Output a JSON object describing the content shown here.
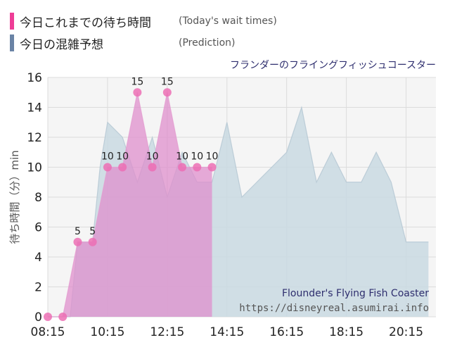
{
  "legend": {
    "actual_label": "今日これまでの待ち時間",
    "actual_sub": "(Today's wait times)",
    "prediction_label": "今日の混雑予想",
    "prediction_sub": "(Prediction)"
  },
  "colors": {
    "actual": "#ee3d96",
    "prediction": "#6a83a5",
    "actual_fill": "#df8fcc",
    "prediction_fill": "#c9d9e2"
  },
  "attraction_jp": "フランダーのフライングフィッシュコースター",
  "attraction_en": "Flounder's Flying Fish Coaster",
  "source_url": "https://disneyreal.asumirai.info",
  "chart_data": {
    "type": "area",
    "ylabel": "待ち時間（分）min",
    "xlabel": "",
    "ylim": [
      0,
      16
    ],
    "xlim": [
      "08:15",
      "21:15"
    ],
    "y_ticks": [
      "0",
      "2",
      "4",
      "6",
      "8",
      "10",
      "12",
      "14",
      "16"
    ],
    "x_ticks": [
      "08:15",
      "10:15",
      "12:15",
      "14:15",
      "16:15",
      "18:15",
      "20:15"
    ],
    "grid": true,
    "series": [
      {
        "name": "今日これまでの待ち時間",
        "x": [
          "08:15",
          "08:45",
          "09:15",
          "09:45",
          "10:15",
          "10:45",
          "11:15",
          "11:45",
          "12:15",
          "12:45",
          "13:15",
          "13:45"
        ],
        "values": [
          0,
          0,
          5,
          5,
          10,
          10,
          15,
          10,
          15,
          10,
          10,
          10
        ],
        "data_labels": [
          "",
          "",
          "5",
          "5",
          "10",
          "10",
          "15",
          "10",
          "15",
          "10",
          "10",
          "10"
        ]
      },
      {
        "name": "今日の混雑予想",
        "x": [
          "08:15",
          "08:45",
          "09:00",
          "09:15",
          "09:45",
          "10:00",
          "10:15",
          "10:45",
          "11:15",
          "11:45",
          "12:15",
          "12:45",
          "13:15",
          "13:45",
          "14:15",
          "14:45",
          "15:15",
          "15:45",
          "16:15",
          "16:45",
          "17:15",
          "17:45",
          "18:15",
          "18:45",
          "19:15",
          "19:45",
          "20:15",
          "20:45",
          "21:00"
        ],
        "values": [
          0,
          0,
          0,
          5,
          5,
          10,
          13,
          12,
          9,
          12,
          8,
          11,
          9,
          9,
          13,
          8,
          9,
          10,
          11,
          14,
          9,
          11,
          9,
          9,
          11,
          9,
          5,
          5,
          5
        ]
      }
    ]
  }
}
